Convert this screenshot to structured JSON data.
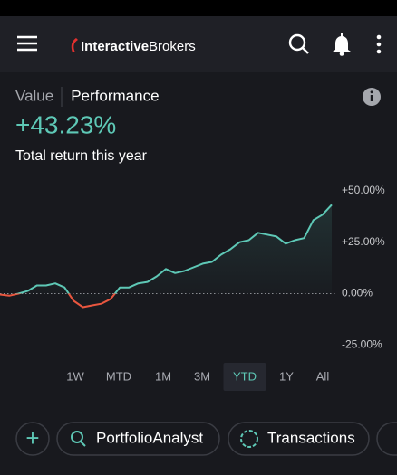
{
  "header": {
    "logo_bold": "Interactive",
    "logo_regular": "Brokers"
  },
  "tabs": {
    "items": [
      "Value",
      "Performance"
    ],
    "selected": 1
  },
  "headline": {
    "value": "+43.23%",
    "caption": "Total return this year"
  },
  "chart_data": {
    "type": "line",
    "values": [
      -0.4,
      -1,
      0,
      1.3,
      4,
      4,
      5,
      3,
      -3.5,
      -6.6,
      -5.7,
      -4.9,
      -2.6,
      3,
      3,
      5,
      5.7,
      8.4,
      12,
      10,
      11,
      12.8,
      14.6,
      15.4,
      19,
      21.6,
      25,
      26,
      29.6,
      28.7,
      27.8,
      24.3,
      26,
      27,
      35.7,
      38.4,
      43.23
    ],
    "color": "#5ec8b6",
    "negative_color": "#e9563f",
    "ylim": [
      -31,
      57
    ],
    "yticks": [
      {
        "value": 50,
        "label": "+50.00%"
      },
      {
        "value": 25,
        "label": "+25.00%"
      },
      {
        "value": 0,
        "label": "0.00%"
      },
      {
        "value": -25,
        "label": "-25.00%"
      }
    ],
    "zero_line": true
  },
  "ranges": {
    "items": [
      "1W",
      "MTD",
      "1M",
      "3M",
      "YTD",
      "1Y",
      "All"
    ],
    "selected": 4
  },
  "actions": {
    "add": "+",
    "items": [
      "PortfolioAnalyst",
      "Transactions"
    ]
  }
}
